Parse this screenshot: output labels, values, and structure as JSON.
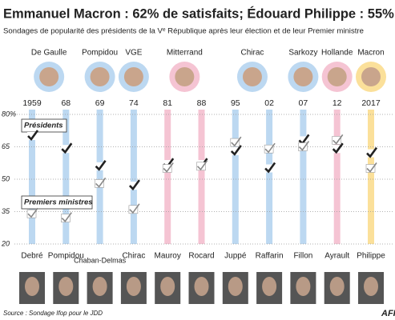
{
  "chart_data": {
    "type": "check",
    "title": "Emmanuel Macron : 62% de satisfaits; Édouard Philippe : 55%",
    "subtitle": "Sondages de popularité des présidents de la Vᵉ République après leur élection et de leur Premier ministre",
    "presidents": [
      "De Gaulle",
      "Pompidou",
      "VGE",
      "Mitterrand",
      "Chirac",
      "Sarkozy",
      "Hollande",
      "Macron"
    ],
    "categories": [
      "1959",
      "68",
      "69",
      "74",
      "81",
      "88",
      "95",
      "02",
      "07",
      "12",
      "2017"
    ],
    "prime_ministers": [
      "Debré",
      "Pompidou",
      "Chaban-Delmas",
      "Chirac",
      "Mauroy",
      "Rocard",
      "Juppé",
      "Raffarin",
      "Fillon",
      "Ayrault",
      "Philippe"
    ],
    "column_colors": [
      "#bcd8f1",
      "#bcd8f1",
      "#bcd8f1",
      "#bcd8f1",
      "#f5c4d3",
      "#f5c4d3",
      "#bcd8f1",
      "#bcd8f1",
      "#bcd8f1",
      "#f5c4d3",
      "#fbe09a"
    ],
    "series": [
      {
        "name": "Présidents",
        "color": "#333333",
        "values": [
          70,
          64,
          56,
          47,
          57,
          57,
          63,
          55,
          68,
          64,
          62
        ]
      },
      {
        "name": "Premiers ministres",
        "color": "#ffffff",
        "values": [
          34,
          32,
          48,
          36,
          55,
          56,
          67,
          64,
          65,
          68,
          55
        ]
      }
    ],
    "ylim": [
      20,
      80
    ],
    "yticks": [
      20,
      35,
      50,
      65,
      {
        "value": 80,
        "label": "80%"
      }
    ],
    "grid": true,
    "source": "Source : Sondage Ifop pour le JDD",
    "logo": "AFP"
  }
}
